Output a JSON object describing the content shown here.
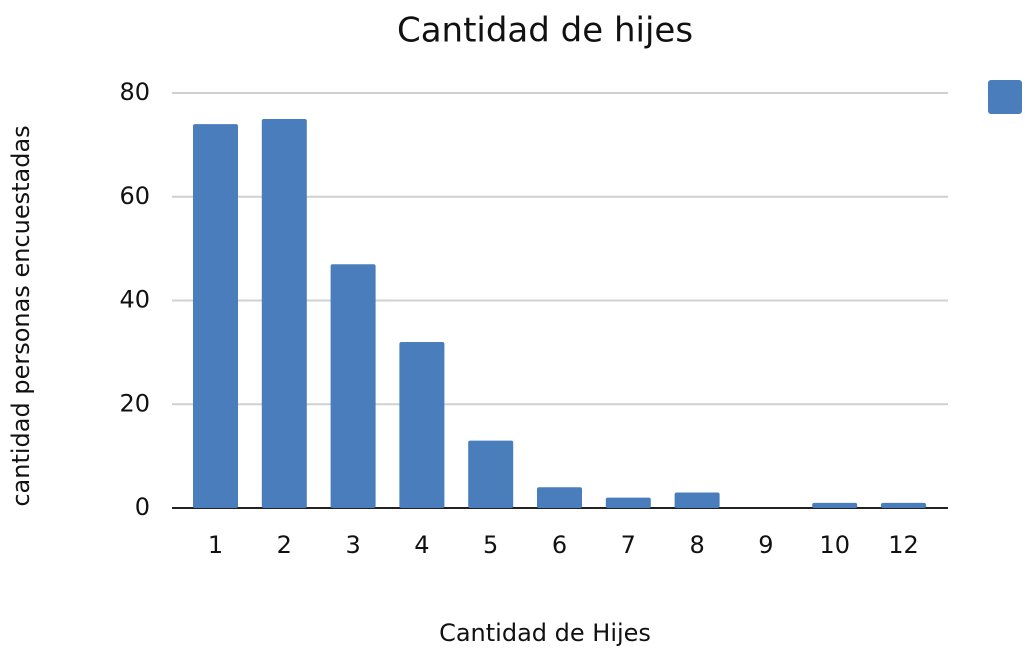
{
  "chart_data": {
    "type": "bar",
    "title": "Cantidad de hijes",
    "x_label": "Cantidad de Hijes",
    "y_label": "cantidad personas encuestadas",
    "categories": [
      "1",
      "2",
      "3",
      "4",
      "5",
      "6",
      "7",
      "8",
      "9",
      "10",
      "12"
    ],
    "values": [
      74,
      75,
      47,
      32,
      13,
      4,
      2,
      3,
      0,
      1,
      1
    ],
    "color": "#4a7dbb",
    "ylim": [
      0,
      80
    ],
    "yticks": [
      0,
      20,
      40,
      60,
      80
    ],
    "grid": true,
    "legend": "top-right"
  }
}
